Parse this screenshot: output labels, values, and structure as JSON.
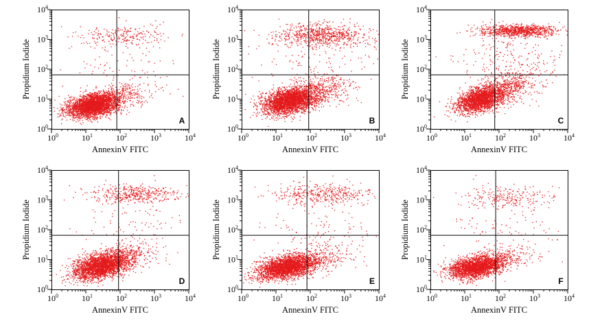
{
  "colors": {
    "points": "#e41a1c",
    "axes": "#000000"
  },
  "chart_data": [
    {
      "type": "scatter",
      "panel": "A",
      "xlabel": "AnnexinV FITC",
      "ylabel": "Propidium Iodide",
      "x_scale": "log",
      "y_scale": "log",
      "xlim": [
        1,
        10000
      ],
      "ylim": [
        1,
        10000
      ],
      "x_ticks": [
        "10^0",
        "10^1",
        "10^2",
        "10^3",
        "10^4"
      ],
      "y_ticks": [
        "10^0",
        "10^1",
        "10^2",
        "10^3",
        "10^4"
      ],
      "quadrant_gates": {
        "x": 80,
        "y": 65
      },
      "clusters": [
        {
          "center_log": [
            1.2,
            0.8
          ],
          "sd_log": [
            0.38,
            0.2
          ],
          "corr": 0.35,
          "n": 2900
        },
        {
          "center_log": [
            2.0,
            1.15
          ],
          "sd_log": [
            0.5,
            0.22
          ],
          "corr": 0.3,
          "n": 300
        },
        {
          "center_log": [
            2.0,
            3.1
          ],
          "sd_log": [
            0.65,
            0.18
          ],
          "corr": 0.0,
          "n": 240
        },
        {
          "center_log": [
            2.0,
            2.0
          ],
          "sd_log": [
            0.9,
            0.6
          ],
          "corr": 0.0,
          "n": 90
        }
      ]
    },
    {
      "type": "scatter",
      "panel": "B",
      "xlabel": "AnnexinV FITC",
      "ylabel": "Propidium Iodide",
      "x_scale": "log",
      "y_scale": "log",
      "xlim": [
        1,
        10000
      ],
      "ylim": [
        1,
        10000
      ],
      "x_ticks": [
        "10^0",
        "10^1",
        "10^2",
        "10^3",
        "10^4"
      ],
      "y_ticks": [
        "10^0",
        "10^1",
        "10^2",
        "10^3",
        "10^4"
      ],
      "quadrant_gates": {
        "x": 90,
        "y": 65
      },
      "clusters": [
        {
          "center_log": [
            1.4,
            0.95
          ],
          "sd_log": [
            0.4,
            0.22
          ],
          "corr": 0.35,
          "n": 2900
        },
        {
          "center_log": [
            2.2,
            1.3
          ],
          "sd_log": [
            0.5,
            0.25
          ],
          "corr": 0.3,
          "n": 420
        },
        {
          "center_log": [
            2.35,
            3.15
          ],
          "sd_log": [
            0.7,
            0.18
          ],
          "corr": 0.0,
          "n": 720
        },
        {
          "center_log": [
            2.3,
            2.2
          ],
          "sd_log": [
            0.9,
            0.6
          ],
          "corr": 0.0,
          "n": 160
        }
      ]
    },
    {
      "type": "scatter",
      "panel": "C",
      "xlabel": "AnnexinV FITC",
      "ylabel": "Propidium Iodide",
      "x_scale": "log",
      "y_scale": "log",
      "xlim": [
        1,
        10000
      ],
      "ylim": [
        1,
        10000
      ],
      "x_ticks": [
        "10^0",
        "10^1",
        "10^2",
        "10^3",
        "10^4"
      ],
      "y_ticks": [
        "10^0",
        "10^1",
        "10^2",
        "10^3",
        "10^4"
      ],
      "quadrant_gates": {
        "x": 75,
        "y": 65
      },
      "clusters": [
        {
          "center_log": [
            1.45,
            1.0
          ],
          "sd_log": [
            0.35,
            0.22
          ],
          "corr": 0.45,
          "n": 2200
        },
        {
          "center_log": [
            2.2,
            1.4
          ],
          "sd_log": [
            0.45,
            0.3
          ],
          "corr": 0.3,
          "n": 500
        },
        {
          "center_log": [
            2.55,
            3.3
          ],
          "sd_log": [
            0.55,
            0.1
          ],
          "corr": 0.0,
          "n": 900
        },
        {
          "center_log": [
            2.4,
            2.3
          ],
          "sd_log": [
            0.8,
            0.55
          ],
          "corr": 0.0,
          "n": 220
        }
      ]
    },
    {
      "type": "scatter",
      "panel": "D",
      "xlabel": "AnnexinV FITC",
      "ylabel": "Propidium Iodide",
      "x_scale": "log",
      "y_scale": "log",
      "xlim": [
        1,
        10000
      ],
      "ylim": [
        1,
        10000
      ],
      "x_ticks": [
        "10^0",
        "10^1",
        "10^2",
        "10^3",
        "10^4"
      ],
      "y_ticks": [
        "10^0",
        "10^1",
        "10^2",
        "10^3",
        "10^4"
      ],
      "quadrant_gates": {
        "x": 90,
        "y": 65
      },
      "clusters": [
        {
          "center_log": [
            1.45,
            0.8
          ],
          "sd_log": [
            0.4,
            0.22
          ],
          "corr": 0.4,
          "n": 2600
        },
        {
          "center_log": [
            2.1,
            1.1
          ],
          "sd_log": [
            0.5,
            0.25
          ],
          "corr": 0.3,
          "n": 350
        },
        {
          "center_log": [
            2.45,
            3.2
          ],
          "sd_log": [
            0.65,
            0.15
          ],
          "corr": 0.0,
          "n": 420
        },
        {
          "center_log": [
            2.3,
            2.1
          ],
          "sd_log": [
            0.9,
            0.6
          ],
          "corr": 0.0,
          "n": 110
        }
      ]
    },
    {
      "type": "scatter",
      "panel": "E",
      "xlabel": "AnnexinV FITC",
      "ylabel": "Propidium Iodide",
      "x_scale": "log",
      "y_scale": "log",
      "xlim": [
        1,
        10000
      ],
      "ylim": [
        1,
        10000
      ],
      "x_ticks": [
        "10^0",
        "10^1",
        "10^2",
        "10^3",
        "10^4"
      ],
      "y_ticks": [
        "10^0",
        "10^1",
        "10^2",
        "10^3",
        "10^4"
      ],
      "quadrant_gates": {
        "x": 80,
        "y": 65
      },
      "clusters": [
        {
          "center_log": [
            1.3,
            0.75
          ],
          "sd_log": [
            0.42,
            0.2
          ],
          "corr": 0.4,
          "n": 2600
        },
        {
          "center_log": [
            2.0,
            1.0
          ],
          "sd_log": [
            0.55,
            0.25
          ],
          "corr": 0.3,
          "n": 400
        },
        {
          "center_log": [
            2.3,
            3.2
          ],
          "sd_log": [
            0.7,
            0.17
          ],
          "corr": 0.0,
          "n": 380
        },
        {
          "center_log": [
            2.2,
            2.1
          ],
          "sd_log": [
            0.9,
            0.6
          ],
          "corr": 0.0,
          "n": 130
        }
      ]
    },
    {
      "type": "scatter",
      "panel": "F",
      "xlabel": "AnnexinV FITC",
      "ylabel": "Propidium Iodide",
      "x_scale": "log",
      "y_scale": "log",
      "xlim": [
        1,
        10000
      ],
      "ylim": [
        1,
        10000
      ],
      "x_ticks": [
        "10^0",
        "10^1",
        "10^2",
        "10^3",
        "10^4"
      ],
      "y_ticks": [
        "10^0",
        "10^1",
        "10^2",
        "10^3",
        "10^4"
      ],
      "quadrant_gates": {
        "x": 80,
        "y": 65
      },
      "clusters": [
        {
          "center_log": [
            1.3,
            0.75
          ],
          "sd_log": [
            0.38,
            0.18
          ],
          "corr": 0.35,
          "n": 2300
        },
        {
          "center_log": [
            2.0,
            1.0
          ],
          "sd_log": [
            0.5,
            0.22
          ],
          "corr": 0.3,
          "n": 320
        },
        {
          "center_log": [
            2.2,
            3.1
          ],
          "sd_log": [
            0.65,
            0.2
          ],
          "corr": 0.0,
          "n": 230
        },
        {
          "center_log": [
            2.1,
            2.0
          ],
          "sd_log": [
            0.9,
            0.6
          ],
          "corr": 0.0,
          "n": 100
        }
      ]
    }
  ]
}
